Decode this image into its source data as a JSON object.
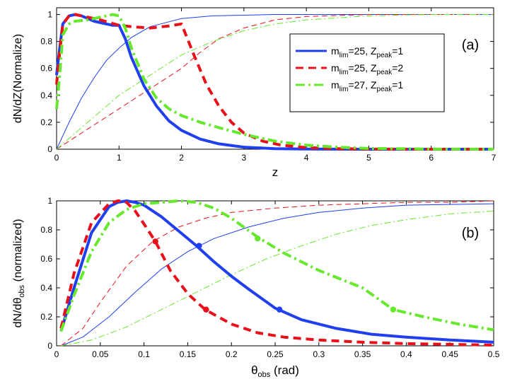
{
  "chart_data": [
    {
      "type": "line",
      "panel_label": "(a)",
      "xlabel": "z",
      "ylabel": "dN/dZ(Normalize)",
      "xlim": [
        0,
        7
      ],
      "ylim": [
        0,
        1.05
      ],
      "xticks": [
        0,
        1,
        2,
        3,
        4,
        5,
        6,
        7
      ],
      "yticks": [
        0,
        0.2,
        0.4,
        0.6,
        0.8,
        1
      ],
      "grid": false,
      "legend_position": "center-right",
      "legend": [
        {
          "base": "m",
          "sub1": "lim",
          "mid": "=25, Z",
          "sub2": "peak",
          "end": "=1",
          "color": "#1f3ff0",
          "dash": "solid"
        },
        {
          "base": "m",
          "sub1": "lim",
          "mid": "=25, Z",
          "sub2": "peak",
          "end": "=2",
          "color": "#e8101a",
          "dash": "dashed"
        },
        {
          "base": "m",
          "sub1": "lim",
          "mid": "=27, Z",
          "sub2": "peak",
          "end": "=1",
          "color": "#66e82c",
          "dash": "dashdot"
        }
      ],
      "series": [
        {
          "name": "mlim=25, Zpeak=1",
          "color": "#1f3ff0",
          "style": "solid",
          "weight": "thick",
          "x": [
            0,
            0.05,
            0.1,
            0.2,
            0.3,
            0.4,
            0.5,
            0.6,
            0.7,
            0.8,
            0.9,
            1.0,
            1.1,
            1.2,
            1.4,
            1.6,
            1.8,
            2.0,
            2.3,
            2.6,
            3.0,
            3.5,
            4.0,
            5.0,
            6.0,
            7.0
          ],
          "y": [
            0.55,
            0.75,
            0.93,
            0.99,
            1.0,
            0.99,
            0.97,
            0.95,
            0.94,
            0.93,
            0.92,
            0.92,
            0.82,
            0.68,
            0.47,
            0.32,
            0.21,
            0.14,
            0.075,
            0.04,
            0.015,
            0.004,
            0.001,
            0.0,
            0.0,
            0.0
          ]
        },
        {
          "name": "mlim=25, Zpeak=2",
          "color": "#e8101a",
          "style": "dashed",
          "weight": "thick",
          "x": [
            0,
            0.05,
            0.1,
            0.2,
            0.3,
            0.4,
            0.5,
            0.7,
            1.0,
            1.2,
            1.5,
            1.8,
            2.0,
            2.2,
            2.4,
            2.6,
            2.8,
            3.0,
            3.3,
            3.6,
            4.0,
            4.5,
            5.0,
            6.0,
            7.0
          ],
          "y": [
            0.48,
            0.72,
            0.93,
            0.99,
            1.0,
            0.99,
            0.98,
            0.96,
            0.92,
            0.91,
            0.9,
            0.915,
            0.93,
            0.7,
            0.48,
            0.32,
            0.2,
            0.12,
            0.06,
            0.03,
            0.012,
            0.004,
            0.001,
            0.0,
            0.0
          ]
        },
        {
          "name": "mlim=27, Zpeak=1",
          "color": "#66e82c",
          "style": "dashdot",
          "weight": "thick",
          "x": [
            0,
            0.05,
            0.1,
            0.2,
            0.3,
            0.5,
            0.7,
            0.9,
            1.0,
            1.1,
            1.2,
            1.4,
            1.6,
            1.8,
            2.0,
            2.3,
            2.6,
            3.0,
            3.5,
            4.0,
            4.5,
            5.0,
            6.0,
            7.0
          ],
          "y": [
            0.3,
            0.55,
            0.85,
            0.93,
            0.95,
            0.96,
            0.98,
            1.0,
            0.99,
            0.9,
            0.75,
            0.52,
            0.38,
            0.3,
            0.25,
            0.2,
            0.16,
            0.11,
            0.06,
            0.03,
            0.015,
            0.006,
            0.001,
            0.0
          ]
        },
        {
          "name": "cumulative mlim=25, Zpeak=1",
          "color": "#1f3ff0",
          "style": "solid",
          "weight": "thin",
          "x": [
            0,
            0.2,
            0.4,
            0.6,
            0.8,
            1.0,
            1.2,
            1.5,
            2.0,
            2.5,
            3.0,
            3.5,
            4.0,
            5.0,
            6.0,
            7.0
          ],
          "y": [
            0,
            0.2,
            0.38,
            0.53,
            0.66,
            0.75,
            0.83,
            0.91,
            0.97,
            0.99,
            0.995,
            1.0,
            1.0,
            1.0,
            1.0,
            1.0
          ]
        },
        {
          "name": "cumulative mlim=25, Zpeak=2",
          "color": "#e8101a",
          "style": "dashed",
          "weight": "thin",
          "x": [
            0,
            0.5,
            1.0,
            1.5,
            2.0,
            2.3,
            2.6,
            3.0,
            3.5,
            4.0,
            5.0,
            6.0,
            7.0
          ],
          "y": [
            0,
            0.15,
            0.3,
            0.45,
            0.6,
            0.72,
            0.82,
            0.9,
            0.96,
            0.985,
            1.0,
            1.0,
            1.0
          ]
        },
        {
          "name": "cumulative mlim=27, Zpeak=1",
          "color": "#66e82c",
          "style": "dashdot",
          "weight": "thin",
          "x": [
            0,
            0.5,
            1.0,
            1.5,
            2.0,
            2.5,
            3.0,
            3.5,
            4.0,
            5.0,
            6.0,
            7.0
          ],
          "y": [
            0,
            0.2,
            0.4,
            0.55,
            0.7,
            0.8,
            0.88,
            0.93,
            0.96,
            0.99,
            1.0,
            1.0
          ]
        }
      ]
    },
    {
      "type": "line",
      "panel_label": "(b)",
      "xlabel": {
        "base": "θ",
        "sub": "obs",
        "rest": " (rad)"
      },
      "ylabel": {
        "lead": "dN/dθ",
        "sub": "obs",
        "rest": " (normalized)"
      },
      "xlim": [
        0,
        0.5
      ],
      "ylim": [
        0,
        1
      ],
      "xticks": [
        0,
        0.05,
        0.1,
        0.15,
        0.2,
        0.25,
        0.3,
        0.35,
        0.4,
        0.45,
        0.5
      ],
      "xtick_labels": [
        "0",
        "0.05",
        "0.1",
        "0.15",
        "0.2",
        "0.25",
        "0.3",
        "0.35",
        "0.4",
        "0.45",
        "0.5"
      ],
      "yticks": [
        0,
        0.2,
        0.4,
        0.6,
        0.8,
        1
      ],
      "grid": false,
      "series": [
        {
          "name": "mlim=25, Zpeak=1",
          "color": "#1f3ff0",
          "style": "solid",
          "weight": "thick",
          "x": [
            0.005,
            0.02,
            0.04,
            0.06,
            0.07,
            0.08,
            0.09,
            0.1,
            0.12,
            0.14,
            0.16,
            0.18,
            0.2,
            0.22,
            0.25,
            0.28,
            0.32,
            0.36,
            0.4,
            0.45,
            0.5
          ],
          "y": [
            0.1,
            0.4,
            0.78,
            0.96,
            0.99,
            1.0,
            0.99,
            0.97,
            0.89,
            0.79,
            0.69,
            0.58,
            0.48,
            0.39,
            0.26,
            0.18,
            0.12,
            0.08,
            0.06,
            0.04,
            0.025
          ],
          "markers": [
            [
              0.163,
              0.69
            ],
            [
              0.255,
              0.25
            ]
          ]
        },
        {
          "name": "mlim=25, Zpeak=2",
          "color": "#e8101a",
          "style": "dashed",
          "weight": "thick",
          "x": [
            0.005,
            0.02,
            0.04,
            0.06,
            0.07,
            0.075,
            0.08,
            0.09,
            0.1,
            0.113,
            0.13,
            0.15,
            0.17,
            0.2,
            0.23,
            0.26,
            0.3,
            0.35,
            0.4,
            0.45,
            0.5
          ],
          "y": [
            0.12,
            0.5,
            0.85,
            0.98,
            1.0,
            1.0,
            0.99,
            0.93,
            0.84,
            0.72,
            0.52,
            0.36,
            0.25,
            0.15,
            0.09,
            0.06,
            0.04,
            0.025,
            0.015,
            0.01,
            0.005
          ],
          "markers": [
            [
              0.113,
              0.72
            ],
            [
              0.171,
              0.25
            ]
          ]
        },
        {
          "name": "mlim=27, Zpeak=1",
          "color": "#66e82c",
          "style": "dashdot",
          "weight": "thick",
          "x": [
            0.005,
            0.02,
            0.04,
            0.06,
            0.08,
            0.1,
            0.12,
            0.14,
            0.16,
            0.18,
            0.2,
            0.23,
            0.26,
            0.3,
            0.35,
            0.385,
            0.42,
            0.46,
            0.5
          ],
          "y": [
            0.1,
            0.35,
            0.65,
            0.85,
            0.94,
            0.98,
            0.99,
            1.0,
            0.99,
            0.95,
            0.88,
            0.75,
            0.64,
            0.52,
            0.4,
            0.25,
            0.2,
            0.15,
            0.11
          ],
          "markers": [
            [
              0.23,
              0.74
            ],
            [
              0.385,
              0.25
            ]
          ]
        },
        {
          "name": "cumulative mlim=25, Zpeak=1",
          "color": "#1f3ff0",
          "style": "solid",
          "weight": "thin",
          "x": [
            0.005,
            0.03,
            0.06,
            0.09,
            0.12,
            0.15,
            0.18,
            0.22,
            0.26,
            0.3,
            0.35,
            0.4,
            0.45,
            0.5
          ],
          "y": [
            0.0,
            0.06,
            0.2,
            0.37,
            0.53,
            0.65,
            0.74,
            0.82,
            0.88,
            0.92,
            0.95,
            0.97,
            0.975,
            0.98
          ]
        },
        {
          "name": "cumulative mlim=25, Zpeak=2",
          "color": "#e8101a",
          "style": "dashed",
          "weight": "thin",
          "x": [
            0.005,
            0.03,
            0.05,
            0.08,
            0.11,
            0.14,
            0.17,
            0.2,
            0.25,
            0.3,
            0.35,
            0.4,
            0.45,
            0.5
          ],
          "y": [
            0.0,
            0.12,
            0.3,
            0.55,
            0.72,
            0.82,
            0.88,
            0.92,
            0.95,
            0.97,
            0.98,
            0.99,
            0.99,
            1.0
          ]
        },
        {
          "name": "cumulative mlim=27, Zpeak=1",
          "color": "#66e82c",
          "style": "dashdot",
          "weight": "thin",
          "x": [
            0.005,
            0.04,
            0.08,
            0.12,
            0.16,
            0.2,
            0.24,
            0.28,
            0.32,
            0.36,
            0.4,
            0.45,
            0.5
          ],
          "y": [
            0.0,
            0.04,
            0.13,
            0.25,
            0.37,
            0.49,
            0.6,
            0.69,
            0.77,
            0.83,
            0.87,
            0.91,
            0.93
          ]
        }
      ]
    }
  ]
}
